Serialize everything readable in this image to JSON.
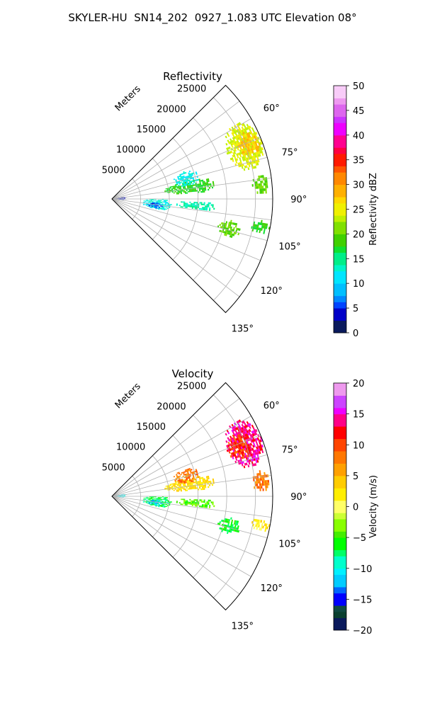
{
  "suptitle": "SKYLER-HU  SN14_202  0927_1.083 UTC Elevation 08°",
  "chart_data": [
    {
      "type": "polar-ppi",
      "title": "Reflectivity",
      "radial_label": "Meters",
      "azimuth_range_deg": [
        45,
        135
      ],
      "radius_max_m": 28000,
      "radial_ticks": [
        5000,
        10000,
        15000,
        20000,
        25000
      ],
      "radial_tick_labels": [
        "5000",
        "10000",
        "15000",
        "20000",
        "25000"
      ],
      "azimuth_ticks": [
        60,
        75,
        90,
        105,
        120,
        135
      ],
      "azimuth_tick_labels": [
        "60°",
        "75°",
        "90°",
        "105°",
        "120°",
        "135°"
      ],
      "grid": true,
      "colorbar": {
        "label": "Reflectivity dBZ",
        "range": [
          0,
          50
        ],
        "ticks": [
          0,
          5,
          10,
          15,
          20,
          25,
          30,
          35,
          40,
          45,
          50
        ],
        "tick_labels": [
          "0",
          "5",
          "10",
          "15",
          "20",
          "25",
          "30",
          "35",
          "40",
          "45",
          "50"
        ]
      },
      "echo_regions": [
        {
          "az": [
            76,
            86
          ],
          "r": [
            9000,
            18000
          ],
          "value": 18
        },
        {
          "az": [
            89,
            103
          ],
          "r": [
            5000,
            10500
          ],
          "value": 12
        },
        {
          "az": [
            93,
            102
          ],
          "r": [
            6000,
            9000
          ],
          "value": 6
        },
        {
          "az": [
            78,
            95
          ],
          "r": [
            100,
            2500
          ],
          "value": 3
        },
        {
          "az": [
            91,
            97
          ],
          "r": [
            11000,
            18000
          ],
          "value": 14
        },
        {
          "az": [
            58,
            78
          ],
          "r": [
            21500,
            27800
          ],
          "value": 24
        },
        {
          "az": [
            63,
            72
          ],
          "r": [
            23500,
            27500
          ],
          "value": 28
        },
        {
          "az": [
            80,
            88
          ],
          "r": [
            24500,
            27500
          ],
          "value": 20
        },
        {
          "az": [
            100,
            108
          ],
          "r": [
            19000,
            23000
          ],
          "value": 20
        },
        {
          "az": [
            69,
            80
          ],
          "r": [
            11000,
            15500
          ],
          "value": 12
        },
        {
          "az": [
            98,
            103
          ],
          "r": [
            24500,
            28000
          ],
          "value": 18
        }
      ]
    },
    {
      "type": "polar-ppi",
      "title": "Velocity",
      "radial_label": "Meters",
      "azimuth_range_deg": [
        45,
        135
      ],
      "radius_max_m": 28000,
      "radial_ticks": [
        5000,
        10000,
        15000,
        20000,
        25000
      ],
      "radial_tick_labels": [
        "5000",
        "10000",
        "15000",
        "20000",
        "25000"
      ],
      "azimuth_ticks": [
        60,
        75,
        90,
        105,
        120,
        135
      ],
      "azimuth_tick_labels": [
        "60°",
        "75°",
        "90°",
        "105°",
        "120°",
        "135°"
      ],
      "grid": true,
      "colorbar": {
        "label": "Velocity (m/s)",
        "range": [
          -20,
          20
        ],
        "ticks": [
          -20,
          -15,
          -10,
          -5,
          0,
          5,
          10,
          15,
          20
        ],
        "tick_labels": [
          "−20",
          "−15",
          "−10",
          "−5",
          "0",
          "5",
          "10",
          "15",
          "20"
        ]
      },
      "echo_regions": [
        {
          "az": [
            76,
            86
          ],
          "r": [
            9000,
            18000
          ],
          "value": 3
        },
        {
          "az": [
            89,
            103
          ],
          "r": [
            5000,
            10500
          ],
          "value": -7
        },
        {
          "az": [
            93,
            102
          ],
          "r": [
            6000,
            9000
          ],
          "value": -11
        },
        {
          "az": [
            78,
            95
          ],
          "r": [
            100,
            2500
          ],
          "value": -10
        },
        {
          "az": [
            91,
            97
          ],
          "r": [
            11000,
            18000
          ],
          "value": -4
        },
        {
          "az": [
            58,
            78
          ],
          "r": [
            21500,
            27800
          ],
          "value": 14
        },
        {
          "az": [
            63,
            74
          ],
          "r": [
            21500,
            25500
          ],
          "value": 10
        },
        {
          "az": [
            80,
            88
          ],
          "r": [
            24500,
            27500
          ],
          "value": 8
        },
        {
          "az": [
            100,
            108
          ],
          "r": [
            19000,
            23000
          ],
          "value": -6
        },
        {
          "az": [
            69,
            80
          ],
          "r": [
            11000,
            15500
          ],
          "value": 8
        },
        {
          "az": [
            98,
            103
          ],
          "r": [
            24500,
            28000
          ],
          "value": 2
        }
      ]
    }
  ]
}
